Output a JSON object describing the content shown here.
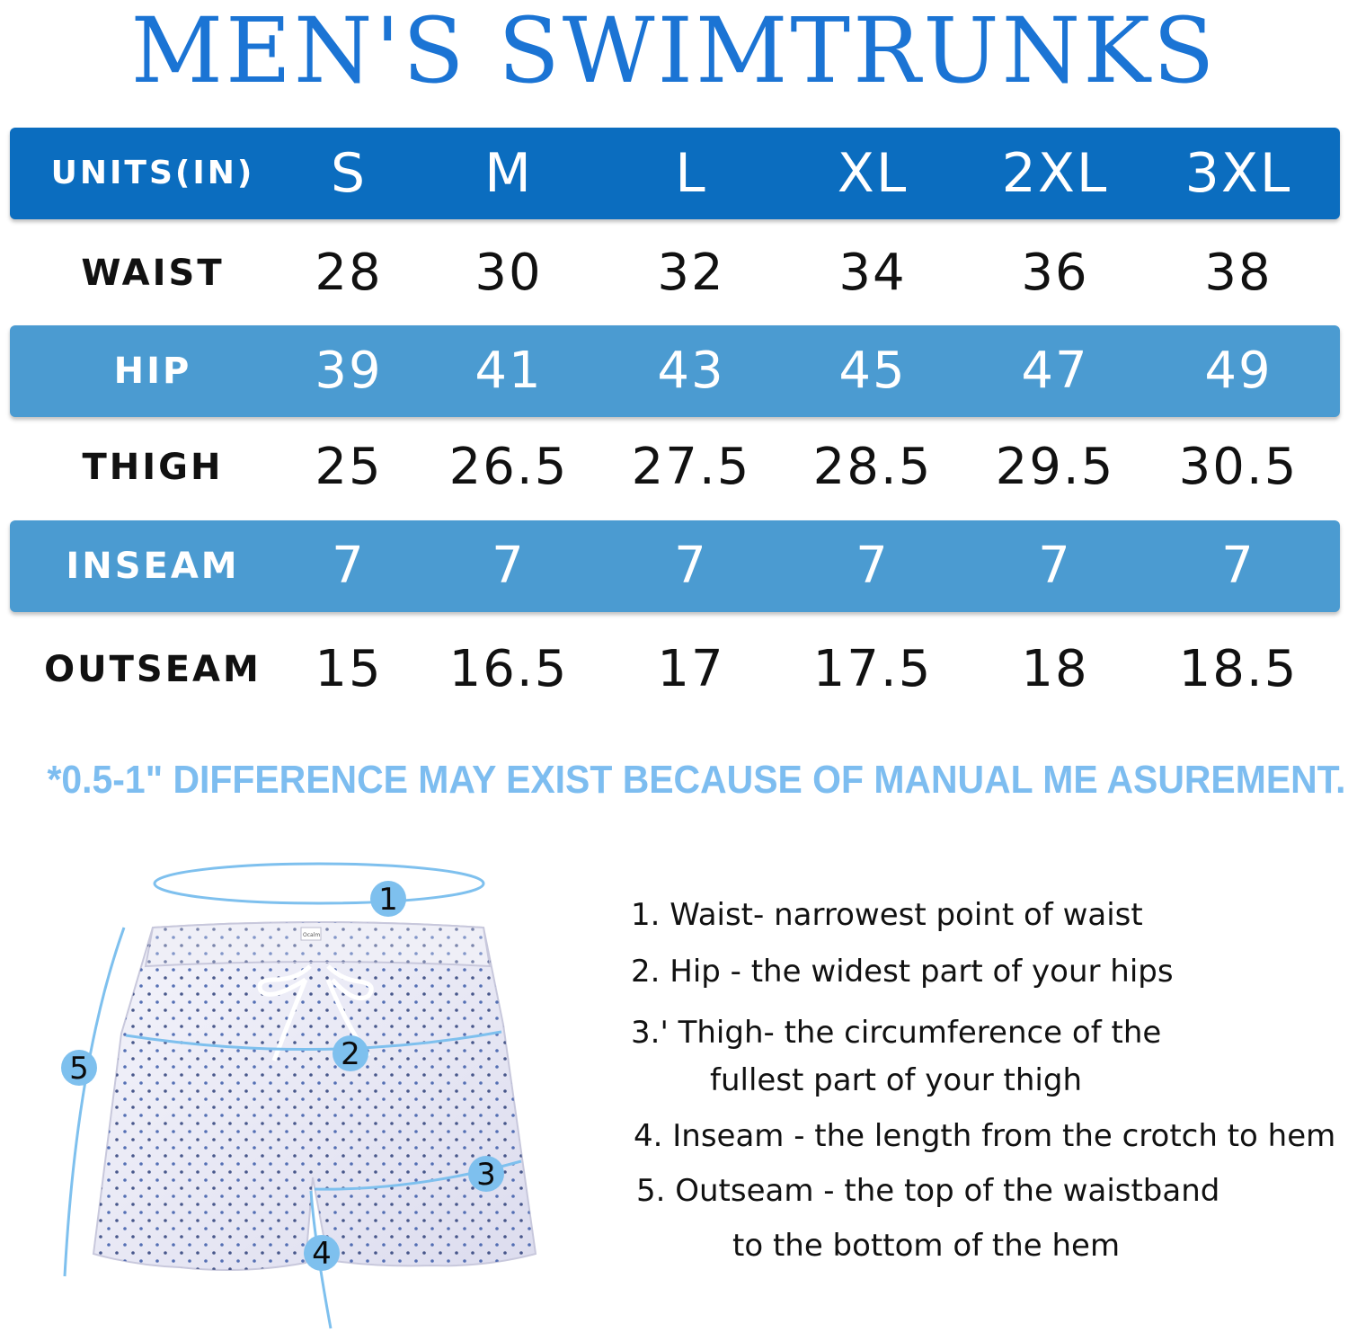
{
  "title": "MEN'S SWIMTRUNKS",
  "table": {
    "header": {
      "label": "UNITS(IN)",
      "sizes": [
        "S",
        "M",
        "L",
        "XL",
        "2XL",
        "3XL"
      ]
    },
    "rows": [
      {
        "label": "WAIST",
        "values": [
          "28",
          "30",
          "32",
          "34",
          "36",
          "38"
        ]
      },
      {
        "label": "HIP",
        "values": [
          "39",
          "41",
          "43",
          "45",
          "47",
          "49"
        ]
      },
      {
        "label": "THIGH",
        "values": [
          "25",
          "26.5",
          "27.5",
          "28.5",
          "29.5",
          "30.5"
        ]
      },
      {
        "label": "INSEAM",
        "values": [
          "7",
          "7",
          "7",
          "7",
          "7",
          "7"
        ]
      },
      {
        "label": "OUTSEAM",
        "values": [
          "15",
          "16.5",
          "17",
          "17.5",
          "18",
          "18.5"
        ]
      }
    ]
  },
  "note": "*0.5-1\" DIFFERENCE MAY EXIST BECAUSE OF MANUAL ME ASUREMENT.",
  "diagram": {
    "badges": [
      "1",
      "2",
      "3",
      "4",
      "5"
    ],
    "label_tag": "Ocalm"
  },
  "descriptions": {
    "waist": "1. Waist- narrowest point of waist",
    "hip": "2. Hip - the widest part of your hips",
    "thigh_line1": "3.' Thigh- the circumference of the",
    "thigh_line2": "fullest part of your thigh",
    "inseam": "4. Inseam - the length from the crotch to hem",
    "outseam_line1": "5. Outseam - the top of the waistband",
    "outseam_line2": "to the bottom of the hem"
  },
  "colors": {
    "title": "#1b74d4",
    "header_band": "#0b6dbf",
    "row_band": "#4b9bd1",
    "note": "#7dbdf0",
    "measure_line": "#7ec0ee"
  }
}
